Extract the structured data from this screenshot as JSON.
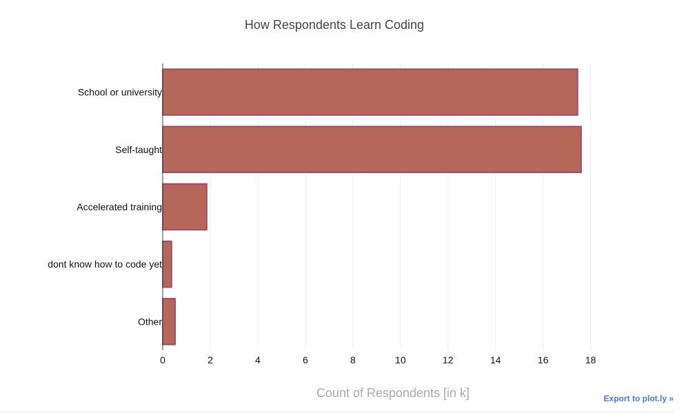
{
  "chart_data": {
    "type": "bar",
    "orientation": "horizontal",
    "title": "How Respondents Learn Coding",
    "xlabel": "Count of Respondents [in k]",
    "ylabel": "",
    "categories": [
      "School or university",
      "Self-taught",
      "Accelerated training",
      "dont know how to code yet",
      "Other"
    ],
    "values": [
      17.45,
      17.6,
      1.85,
      0.37,
      0.52
    ],
    "xlim": [
      0,
      18.85
    ],
    "xticks": [
      0,
      2,
      4,
      6,
      8,
      10,
      12,
      14,
      16,
      18
    ],
    "grid": true,
    "legend": "none",
    "bar_color": "#b5685a",
    "bar_edge_color": "#a04a6e"
  },
  "export_label": "Export to plot.ly »"
}
